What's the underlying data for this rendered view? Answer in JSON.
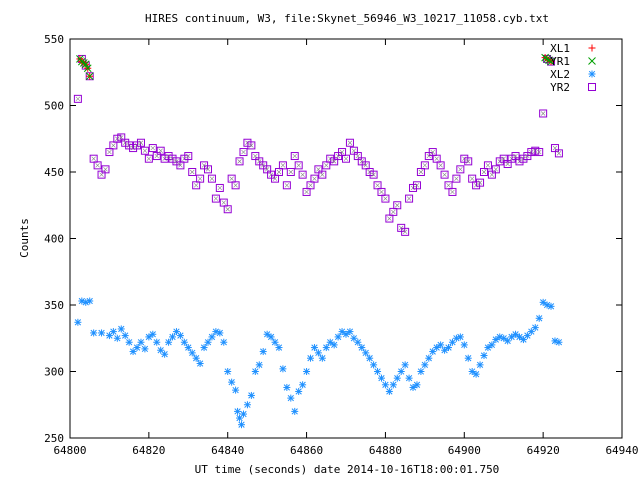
{
  "chart_data": {
    "type": "scatter",
    "title": "HIRES continuum, W3, file:Skynet_56946_W3_10217_11058.cyb.txt",
    "xlabel": "UT time (seconds) date 2014-10-16T18:00:01.750",
    "ylabel": "Counts",
    "xlim": [
      64800,
      64940
    ],
    "ylim": [
      250,
      550
    ],
    "xticks": [
      64800,
      64820,
      64840,
      64860,
      64880,
      64900,
      64920,
      64940
    ],
    "yticks": [
      250,
      300,
      350,
      400,
      450,
      500,
      550
    ],
    "grid": false,
    "legend_position": "top-right",
    "series": [
      {
        "name": "XL1",
        "marker": "plus",
        "color": "#ff0000",
        "points": [
          [
            64802.5,
            535
          ],
          [
            64803,
            533
          ],
          [
            64803.5,
            532
          ],
          [
            64804,
            531
          ],
          [
            64804.5,
            528
          ],
          [
            64805,
            522
          ],
          [
            64920.5,
            536
          ],
          [
            64921,
            535
          ],
          [
            64921.5,
            534
          ],
          [
            64922,
            533
          ]
        ]
      },
      {
        "name": "YR1",
        "marker": "cross",
        "color": "#00a000",
        "points": [
          [
            64802.5,
            535
          ],
          [
            64803,
            533
          ],
          [
            64803.5,
            532
          ],
          [
            64804,
            531
          ],
          [
            64804.5,
            528
          ],
          [
            64805,
            522
          ],
          [
            64920.5,
            536
          ],
          [
            64921,
            535
          ],
          [
            64921.5,
            534
          ],
          [
            64922,
            533
          ]
        ]
      },
      {
        "name": "XL2",
        "marker": "star",
        "color": "#1e90ff",
        "points": [
          [
            64802,
            337
          ],
          [
            64803,
            353
          ],
          [
            64804,
            352
          ],
          [
            64805,
            353
          ],
          [
            64806,
            329
          ],
          [
            64808,
            329
          ],
          [
            64810,
            327
          ],
          [
            64811,
            330
          ],
          [
            64812,
            325
          ],
          [
            64813,
            332
          ],
          [
            64814,
            327
          ],
          [
            64815,
            322
          ],
          [
            64816,
            315
          ],
          [
            64817,
            318
          ],
          [
            64818,
            322
          ],
          [
            64819,
            317
          ],
          [
            64820,
            326
          ],
          [
            64821,
            328
          ],
          [
            64822,
            322
          ],
          [
            64823,
            316
          ],
          [
            64824,
            313
          ],
          [
            64825,
            322
          ],
          [
            64826,
            326
          ],
          [
            64827,
            330
          ],
          [
            64828,
            327
          ],
          [
            64829,
            322
          ],
          [
            64830,
            318
          ],
          [
            64831,
            314
          ],
          [
            64832,
            310
          ],
          [
            64833,
            306
          ],
          [
            64834,
            318
          ],
          [
            64835,
            322
          ],
          [
            64836,
            326
          ],
          [
            64837,
            330
          ],
          [
            64838,
            329
          ],
          [
            64839,
            322
          ],
          [
            64840,
            300
          ],
          [
            64841,
            292
          ],
          [
            64842,
            286
          ],
          [
            64842.5,
            270
          ],
          [
            64843,
            265
          ],
          [
            64843.5,
            260
          ],
          [
            64844,
            268
          ],
          [
            64845,
            275
          ],
          [
            64846,
            282
          ],
          [
            64847,
            300
          ],
          [
            64848,
            305
          ],
          [
            64849,
            315
          ],
          [
            64850,
            328
          ],
          [
            64851,
            326
          ],
          [
            64852,
            322
          ],
          [
            64853,
            318
          ],
          [
            64854,
            302
          ],
          [
            64855,
            288
          ],
          [
            64856,
            280
          ],
          [
            64857,
            270
          ],
          [
            64858,
            285
          ],
          [
            64859,
            290
          ],
          [
            64860,
            300
          ],
          [
            64861,
            310
          ],
          [
            64862,
            318
          ],
          [
            64863,
            314
          ],
          [
            64864,
            310
          ],
          [
            64865,
            318
          ],
          [
            64866,
            322
          ],
          [
            64867,
            320
          ],
          [
            64868,
            326
          ],
          [
            64869,
            330
          ],
          [
            64870,
            328
          ],
          [
            64871,
            330
          ],
          [
            64872,
            325
          ],
          [
            64873,
            322
          ],
          [
            64874,
            318
          ],
          [
            64875,
            314
          ],
          [
            64876,
            310
          ],
          [
            64877,
            305
          ],
          [
            64878,
            300
          ],
          [
            64879,
            295
          ],
          [
            64880,
            290
          ],
          [
            64881,
            285
          ],
          [
            64882,
            290
          ],
          [
            64883,
            295
          ],
          [
            64884,
            300
          ],
          [
            64885,
            305
          ],
          [
            64886,
            295
          ],
          [
            64887,
            288
          ],
          [
            64888,
            290
          ],
          [
            64889,
            300
          ],
          [
            64890,
            305
          ],
          [
            64891,
            310
          ],
          [
            64892,
            315
          ],
          [
            64893,
            318
          ],
          [
            64894,
            320
          ],
          [
            64895,
            316
          ],
          [
            64896,
            318
          ],
          [
            64897,
            322
          ],
          [
            64898,
            325
          ],
          [
            64899,
            326
          ],
          [
            64900,
            320
          ],
          [
            64901,
            310
          ],
          [
            64902,
            300
          ],
          [
            64903,
            298
          ],
          [
            64904,
            305
          ],
          [
            64905,
            312
          ],
          [
            64906,
            318
          ],
          [
            64907,
            320
          ],
          [
            64908,
            324
          ],
          [
            64909,
            326
          ],
          [
            64910,
            325
          ],
          [
            64911,
            323
          ],
          [
            64912,
            326
          ],
          [
            64913,
            328
          ],
          [
            64914,
            326
          ],
          [
            64915,
            324
          ],
          [
            64916,
            327
          ],
          [
            64917,
            330
          ],
          [
            64918,
            333
          ],
          [
            64919,
            340
          ],
          [
            64920,
            352
          ],
          [
            64921,
            350
          ],
          [
            64922,
            349
          ],
          [
            64923,
            323
          ],
          [
            64924,
            322
          ]
        ]
      },
      {
        "name": "YR2",
        "marker": "square",
        "color": "#9400d3",
        "points": [
          [
            64802,
            505
          ],
          [
            64803,
            535
          ],
          [
            64804,
            530
          ],
          [
            64805,
            522
          ],
          [
            64806,
            460
          ],
          [
            64807,
            455
          ],
          [
            64808,
            448
          ],
          [
            64809,
            452
          ],
          [
            64810,
            465
          ],
          [
            64811,
            470
          ],
          [
            64812,
            475
          ],
          [
            64813,
            476
          ],
          [
            64814,
            472
          ],
          [
            64815,
            470
          ],
          [
            64816,
            468
          ],
          [
            64817,
            470
          ],
          [
            64818,
            472
          ],
          [
            64819,
            466
          ],
          [
            64820,
            460
          ],
          [
            64821,
            468
          ],
          [
            64822,
            462
          ],
          [
            64823,
            466
          ],
          [
            64824,
            460
          ],
          [
            64825,
            462
          ],
          [
            64826,
            460
          ],
          [
            64827,
            458
          ],
          [
            64828,
            455
          ],
          [
            64829,
            460
          ],
          [
            64830,
            462
          ],
          [
            64831,
            450
          ],
          [
            64832,
            440
          ],
          [
            64833,
            445
          ],
          [
            64834,
            455
          ],
          [
            64835,
            452
          ],
          [
            64836,
            445
          ],
          [
            64837,
            430
          ],
          [
            64838,
            438
          ],
          [
            64839,
            427
          ],
          [
            64840,
            422
          ],
          [
            64841,
            445
          ],
          [
            64842,
            440
          ],
          [
            64843,
            458
          ],
          [
            64844,
            465
          ],
          [
            64845,
            472
          ],
          [
            64846,
            470
          ],
          [
            64847,
            462
          ],
          [
            64848,
            458
          ],
          [
            64849,
            455
          ],
          [
            64850,
            452
          ],
          [
            64851,
            448
          ],
          [
            64852,
            445
          ],
          [
            64853,
            450
          ],
          [
            64854,
            455
          ],
          [
            64855,
            440
          ],
          [
            64856,
            450
          ],
          [
            64857,
            462
          ],
          [
            64858,
            455
          ],
          [
            64859,
            448
          ],
          [
            64860,
            435
          ],
          [
            64861,
            440
          ],
          [
            64862,
            445
          ],
          [
            64863,
            452
          ],
          [
            64864,
            448
          ],
          [
            64865,
            455
          ],
          [
            64866,
            460
          ],
          [
            64867,
            458
          ],
          [
            64868,
            462
          ],
          [
            64869,
            465
          ],
          [
            64870,
            460
          ],
          [
            64871,
            472
          ],
          [
            64872,
            466
          ],
          [
            64873,
            462
          ],
          [
            64874,
            458
          ],
          [
            64875,
            455
          ],
          [
            64876,
            450
          ],
          [
            64877,
            448
          ],
          [
            64878,
            440
          ],
          [
            64879,
            435
          ],
          [
            64880,
            430
          ],
          [
            64881,
            415
          ],
          [
            64882,
            420
          ],
          [
            64883,
            425
          ],
          [
            64884,
            408
          ],
          [
            64885,
            405
          ],
          [
            64886,
            430
          ],
          [
            64887,
            438
          ],
          [
            64888,
            440
          ],
          [
            64889,
            450
          ],
          [
            64890,
            455
          ],
          [
            64891,
            462
          ],
          [
            64892,
            465
          ],
          [
            64893,
            460
          ],
          [
            64894,
            455
          ],
          [
            64895,
            448
          ],
          [
            64896,
            440
          ],
          [
            64897,
            435
          ],
          [
            64898,
            445
          ],
          [
            64899,
            452
          ],
          [
            64900,
            460
          ],
          [
            64901,
            458
          ],
          [
            64902,
            445
          ],
          [
            64903,
            440
          ],
          [
            64904,
            442
          ],
          [
            64905,
            450
          ],
          [
            64906,
            455
          ],
          [
            64907,
            448
          ],
          [
            64908,
            452
          ],
          [
            64909,
            458
          ],
          [
            64910,
            460
          ],
          [
            64911,
            456
          ],
          [
            64912,
            460
          ],
          [
            64913,
            462
          ],
          [
            64914,
            458
          ],
          [
            64915,
            460
          ],
          [
            64916,
            462
          ],
          [
            64917,
            465
          ],
          [
            64918,
            466
          ],
          [
            64919,
            465
          ],
          [
            64920,
            494
          ],
          [
            64921,
            535
          ],
          [
            64922,
            533
          ],
          [
            64923,
            468
          ],
          [
            64924,
            464
          ]
        ]
      }
    ]
  }
}
